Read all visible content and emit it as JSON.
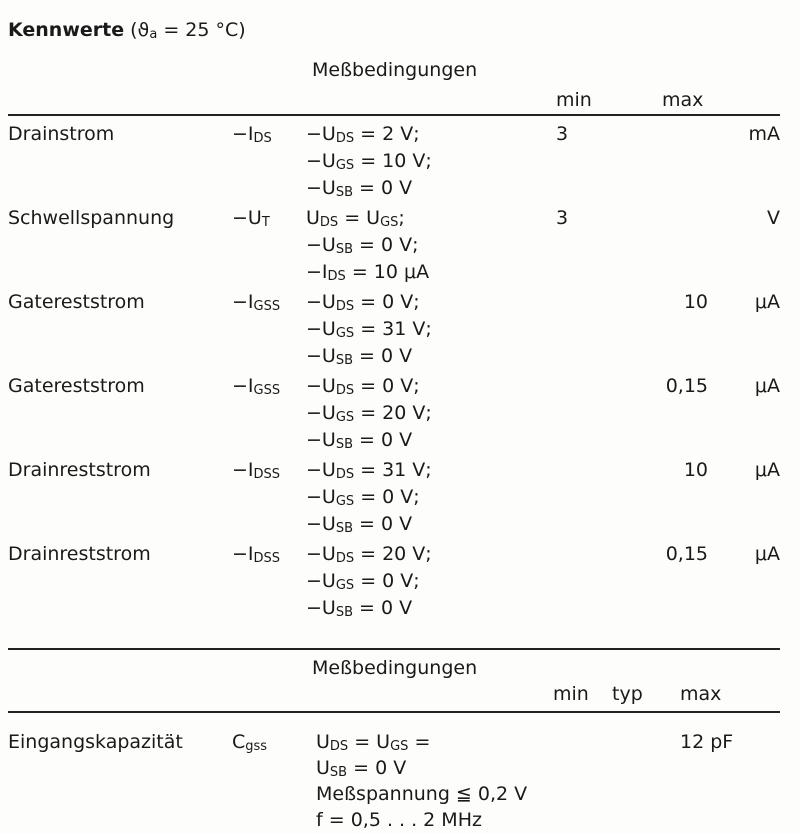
{
  "title": {
    "bold": "Kennwerte",
    "rest": " (ϑ",
    "sub": "a",
    "tail": " = 25 °C)"
  },
  "section1": {
    "conditions_header": "Meßbedingungen",
    "min_header": "min",
    "max_header": "max",
    "rows": [
      {
        "name": "Drainstrom",
        "sym": "−I",
        "sym_sub": "DS",
        "lines": [
          [
            "−U",
            "DS",
            " =  2 V;"
          ],
          [
            "−U",
            "GS",
            " = 10 V;"
          ],
          [
            "−U",
            "SB",
            " =  0 V"
          ]
        ],
        "min": "3",
        "max": "",
        "unit": "mA"
      },
      {
        "name": "Schwellspannung",
        "sym": "−U",
        "sym_sub": "T",
        "lines": [
          [
            "U",
            "DS",
            "  = U",
            "GS",
            ";"
          ],
          [
            "−U",
            "SB",
            " =  0 V;"
          ],
          [
            "−I",
            "DS",
            "  = 10 μA"
          ]
        ],
        "min": "3",
        "max": "",
        "unit": "V"
      },
      {
        "name": "Gatereststrom",
        "sym": "−I",
        "sym_sub": "GSS",
        "lines": [
          [
            "−U",
            "DS",
            " =  0 V;"
          ],
          [
            "−U",
            "GS",
            " = 31 V;"
          ],
          [
            "−U",
            "SB",
            " =  0 V"
          ]
        ],
        "min": "",
        "max": "10",
        "unit": "μA"
      },
      {
        "name": "Gatereststrom",
        "sym": "−I",
        "sym_sub": "GSS",
        "lines": [
          [
            "−U",
            "DS",
            " =  0 V;"
          ],
          [
            "−U",
            "GS",
            " = 20 V;"
          ],
          [
            "−U",
            "SB",
            " =  0 V"
          ]
        ],
        "min": "",
        "max": "0,15",
        "unit": "μA"
      },
      {
        "name": "Drainreststrom",
        "sym": "−I",
        "sym_sub": "DSS",
        "lines": [
          [
            "−U",
            "DS",
            " = 31 V;"
          ],
          [
            "−U",
            "GS",
            " =  0 V;"
          ],
          [
            "−U",
            "SB",
            " =  0 V"
          ]
        ],
        "min": "",
        "max": "10",
        "unit": "μA"
      },
      {
        "name": "Drainreststrom",
        "sym": "−I",
        "sym_sub": "DSS",
        "lines": [
          [
            "−U",
            "DS",
            " = 20 V;"
          ],
          [
            "−U",
            "GS",
            " =  0 V;"
          ],
          [
            "−U",
            "SB",
            " =  0 V"
          ]
        ],
        "min": "",
        "max": "0,15",
        "unit": "μA"
      }
    ]
  },
  "section2": {
    "conditions_header": "Meßbedingungen",
    "min_header": "min",
    "typ_header": "typ",
    "max_header": "max",
    "rows": [
      {
        "name": "Eingangskapazität",
        "sym": "C",
        "sym_sub": "gss",
        "lines": [
          [
            "U",
            "DS",
            " = U",
            "GS",
            " ="
          ],
          [
            "U",
            "SB",
            " = 0 V"
          ],
          [
            "Meßspannung ≦ 0,2 V"
          ],
          [
            "f = 0,5 . . . 2 MHz"
          ]
        ],
        "max": "12 pF"
      }
    ]
  }
}
